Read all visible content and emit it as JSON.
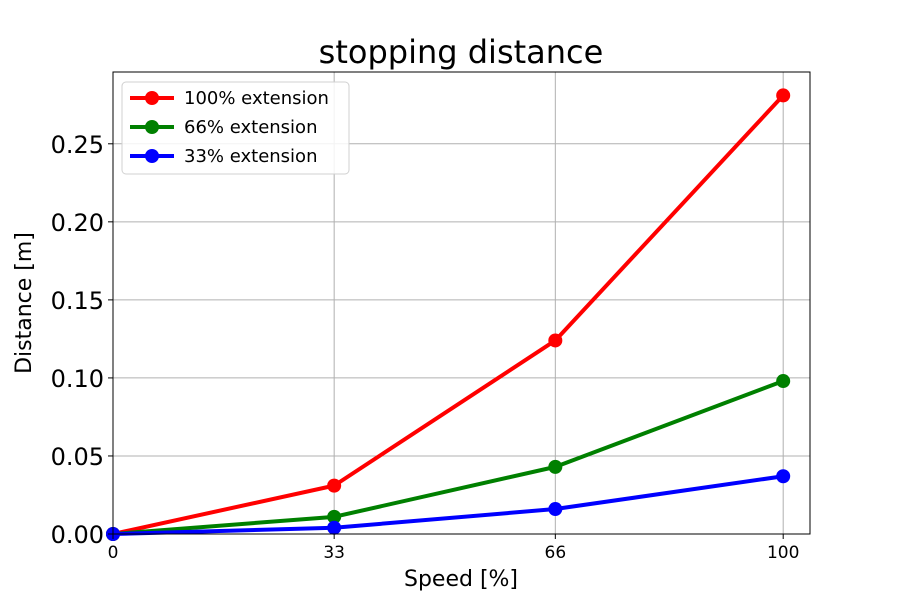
{
  "chart_data": {
    "type": "line",
    "title": "stopping distance",
    "xlabel": "Speed [%]",
    "ylabel": "Distance [m]",
    "x": [
      0,
      33,
      66,
      100
    ],
    "xticks": [
      "0",
      "33",
      "66",
      "100"
    ],
    "yticks": [
      "0.00",
      "0.05",
      "0.10",
      "0.15",
      "0.20",
      "0.25"
    ],
    "xlim": [
      0,
      104
    ],
    "ylim": [
      0,
      0.296
    ],
    "grid": true,
    "legend_position": "top-left",
    "series": [
      {
        "name": "100% extension",
        "color": "#ff0000",
        "values": [
          0,
          0.031,
          0.124,
          0.281
        ]
      },
      {
        "name": "66% extension",
        "color": "#008000",
        "values": [
          0,
          0.011,
          0.043,
          0.098
        ]
      },
      {
        "name": "33% extension",
        "color": "#0000ff",
        "values": [
          0,
          0.004,
          0.016,
          0.037
        ]
      }
    ]
  }
}
